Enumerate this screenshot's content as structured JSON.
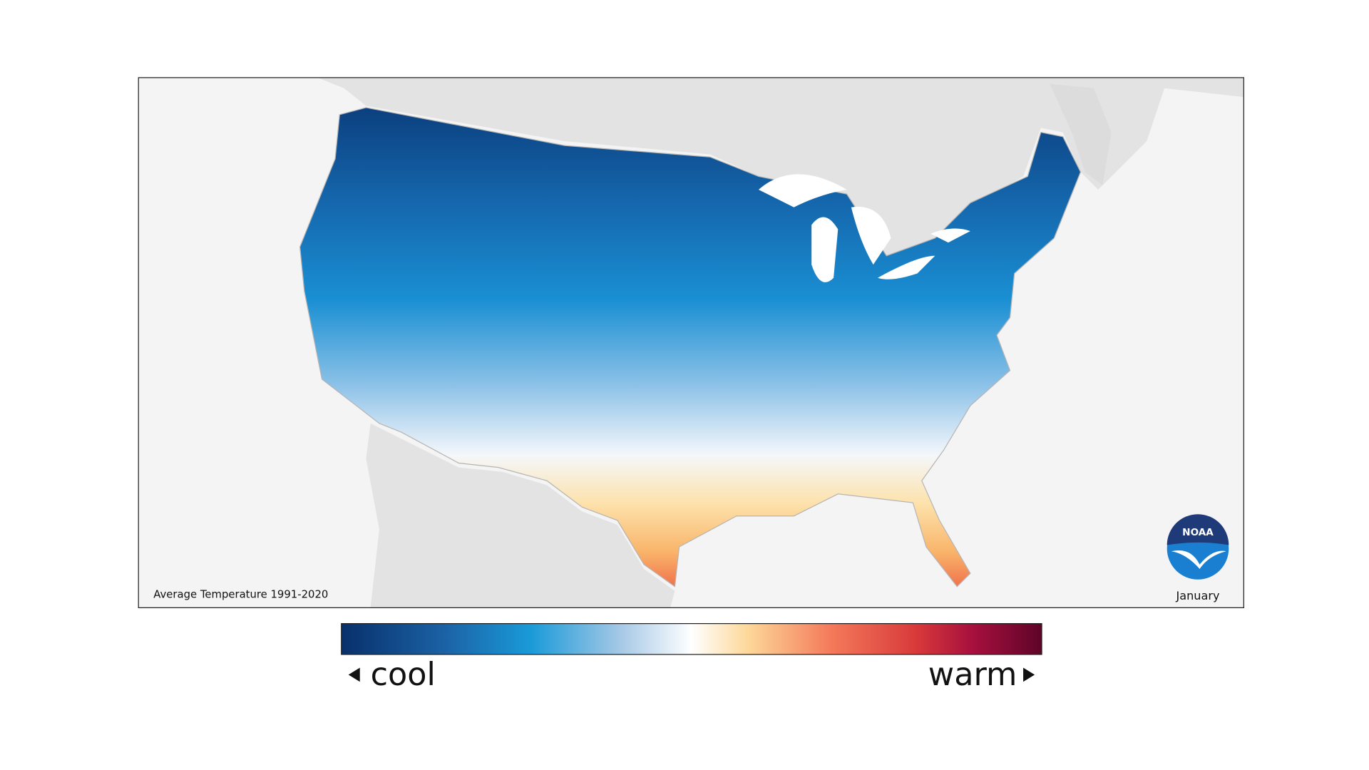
{
  "map": {
    "caption": "Average Temperature 1991-2020",
    "month": "January",
    "logo": "NOAA"
  },
  "legend": {
    "low": "cool",
    "high": "warm"
  }
}
